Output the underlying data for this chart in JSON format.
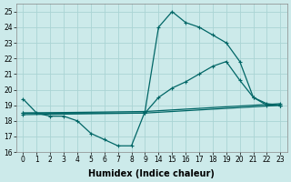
{
  "background_color": "#cceaea",
  "grid_color": "#aad4d4",
  "line_color": "#006666",
  "xlabel": "Humidex (Indice chaleur)",
  "xlim": [
    -0.5,
    19.5
  ],
  "ylim": [
    16,
    25.5
  ],
  "yticks": [
    16,
    17,
    18,
    19,
    20,
    21,
    22,
    23,
    24,
    25
  ],
  "xtick_positions": [
    0,
    1,
    2,
    3,
    4,
    5,
    6,
    7,
    8,
    9,
    10,
    11,
    12,
    13,
    14,
    15,
    16,
    17,
    18,
    19
  ],
  "xtick_labels": [
    "0",
    "1",
    "2",
    "3",
    "4",
    "5",
    "6",
    "7",
    "8",
    "9",
    "14",
    "15",
    "16",
    "17",
    "18",
    "19",
    "20",
    "21",
    "22",
    "23"
  ],
  "lines": [
    {
      "x": [
        0,
        1,
        2,
        3,
        4,
        5,
        6,
        7,
        8,
        9,
        10,
        11,
        12,
        13,
        14,
        15,
        16,
        17,
        18,
        19
      ],
      "y": [
        19.4,
        18.5,
        18.3,
        18.3,
        18.0,
        17.2,
        16.8,
        16.4,
        16.4,
        18.6,
        24.0,
        25.0,
        24.3,
        24.0,
        23.5,
        23.0,
        21.8,
        19.5,
        19.0,
        19.0
      ],
      "marker": "+",
      "markersize": 3.5,
      "linewidth": 0.9
    },
    {
      "x": [
        0,
        9,
        10,
        11,
        12,
        13,
        14,
        15,
        16,
        17,
        18,
        19
      ],
      "y": [
        18.5,
        18.5,
        19.5,
        20.1,
        20.5,
        21.0,
        21.5,
        21.8,
        20.6,
        19.5,
        19.1,
        19.0
      ],
      "marker": "+",
      "markersize": 3.5,
      "linewidth": 0.9
    },
    {
      "x": [
        0,
        9,
        19
      ],
      "y": [
        18.5,
        18.6,
        19.1
      ],
      "marker": "+",
      "markersize": 3.5,
      "linewidth": 0.9
    },
    {
      "x": [
        0,
        9,
        19
      ],
      "y": [
        18.4,
        18.5,
        19.0
      ],
      "marker": "+",
      "markersize": 3.5,
      "linewidth": 0.9
    }
  ]
}
